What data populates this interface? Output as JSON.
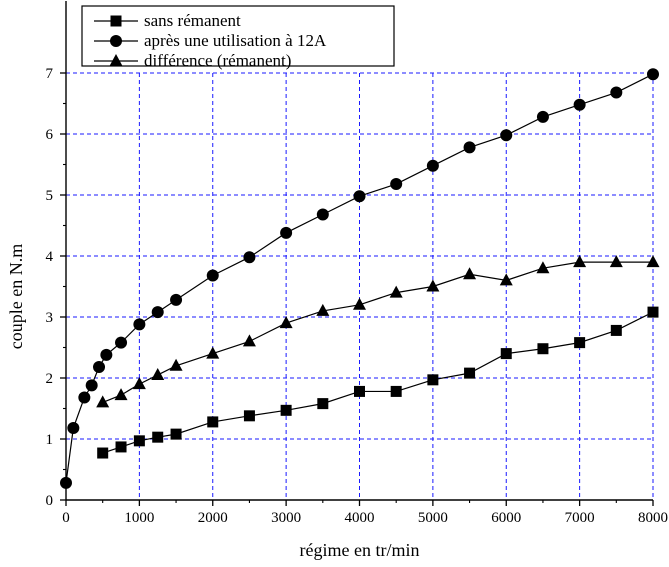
{
  "chart_data": {
    "type": "line",
    "title": "",
    "xlabel": "régime en tr/min",
    "ylabel": "couple en N.m",
    "xlim": [
      0,
      8000
    ],
    "ylim": [
      0,
      7
    ],
    "xticks": [
      0,
      1000,
      2000,
      3000,
      4000,
      5000,
      6000,
      7000,
      8000
    ],
    "xtick_labels": [
      "0",
      "1000",
      "2000",
      "3000",
      "4000",
      "5000",
      "6000",
      "7000",
      "8000"
    ],
    "yticks": [
      0,
      1,
      2,
      3,
      4,
      5,
      6,
      7
    ],
    "ytick_labels": [
      "0",
      "1",
      "2",
      "3",
      "4",
      "5",
      "6",
      "7"
    ],
    "grid": true,
    "grid_color": "#1a1aff",
    "legend_position": "top-left",
    "series": [
      {
        "name": "sans rémanent",
        "marker": "square",
        "color": "#000000",
        "x": [
          500,
          750,
          1000,
          1250,
          1500,
          2000,
          2500,
          3000,
          3500,
          4000,
          4500,
          5000,
          5500,
          6000,
          6500,
          7000,
          7500,
          8000
        ],
        "y": [
          0.77,
          0.87,
          0.97,
          1.03,
          1.08,
          1.28,
          1.38,
          1.47,
          1.58,
          1.78,
          1.78,
          1.97,
          2.08,
          2.4,
          2.48,
          2.58,
          2.78,
          3.08
        ]
      },
      {
        "name": "après une utilisation à 12A",
        "marker": "circle",
        "color": "#000000",
        "x": [
          0,
          100,
          250,
          350,
          450,
          550,
          750,
          1000,
          1250,
          1500,
          2000,
          2500,
          3000,
          3500,
          4000,
          4500,
          5000,
          5500,
          6000,
          6500,
          7000,
          7500,
          8000
        ],
        "y": [
          0.28,
          1.18,
          1.68,
          1.88,
          2.18,
          2.38,
          2.58,
          2.88,
          3.08,
          3.28,
          3.68,
          3.98,
          4.38,
          4.68,
          4.98,
          5.18,
          5.48,
          5.78,
          5.98,
          6.28,
          6.48,
          6.68,
          6.98
        ]
      },
      {
        "name": "différence (rémanent)",
        "marker": "triangle",
        "color": "#000000",
        "x": [
          500,
          750,
          1000,
          1250,
          1500,
          2000,
          2500,
          3000,
          3500,
          4000,
          4500,
          5000,
          5500,
          6000,
          6500,
          7000,
          7500,
          8000
        ],
        "y": [
          1.6,
          1.72,
          1.9,
          2.05,
          2.2,
          2.4,
          2.6,
          2.9,
          3.1,
          3.2,
          3.4,
          3.5,
          3.7,
          3.6,
          3.8,
          3.9,
          3.9,
          3.9
        ]
      }
    ]
  }
}
